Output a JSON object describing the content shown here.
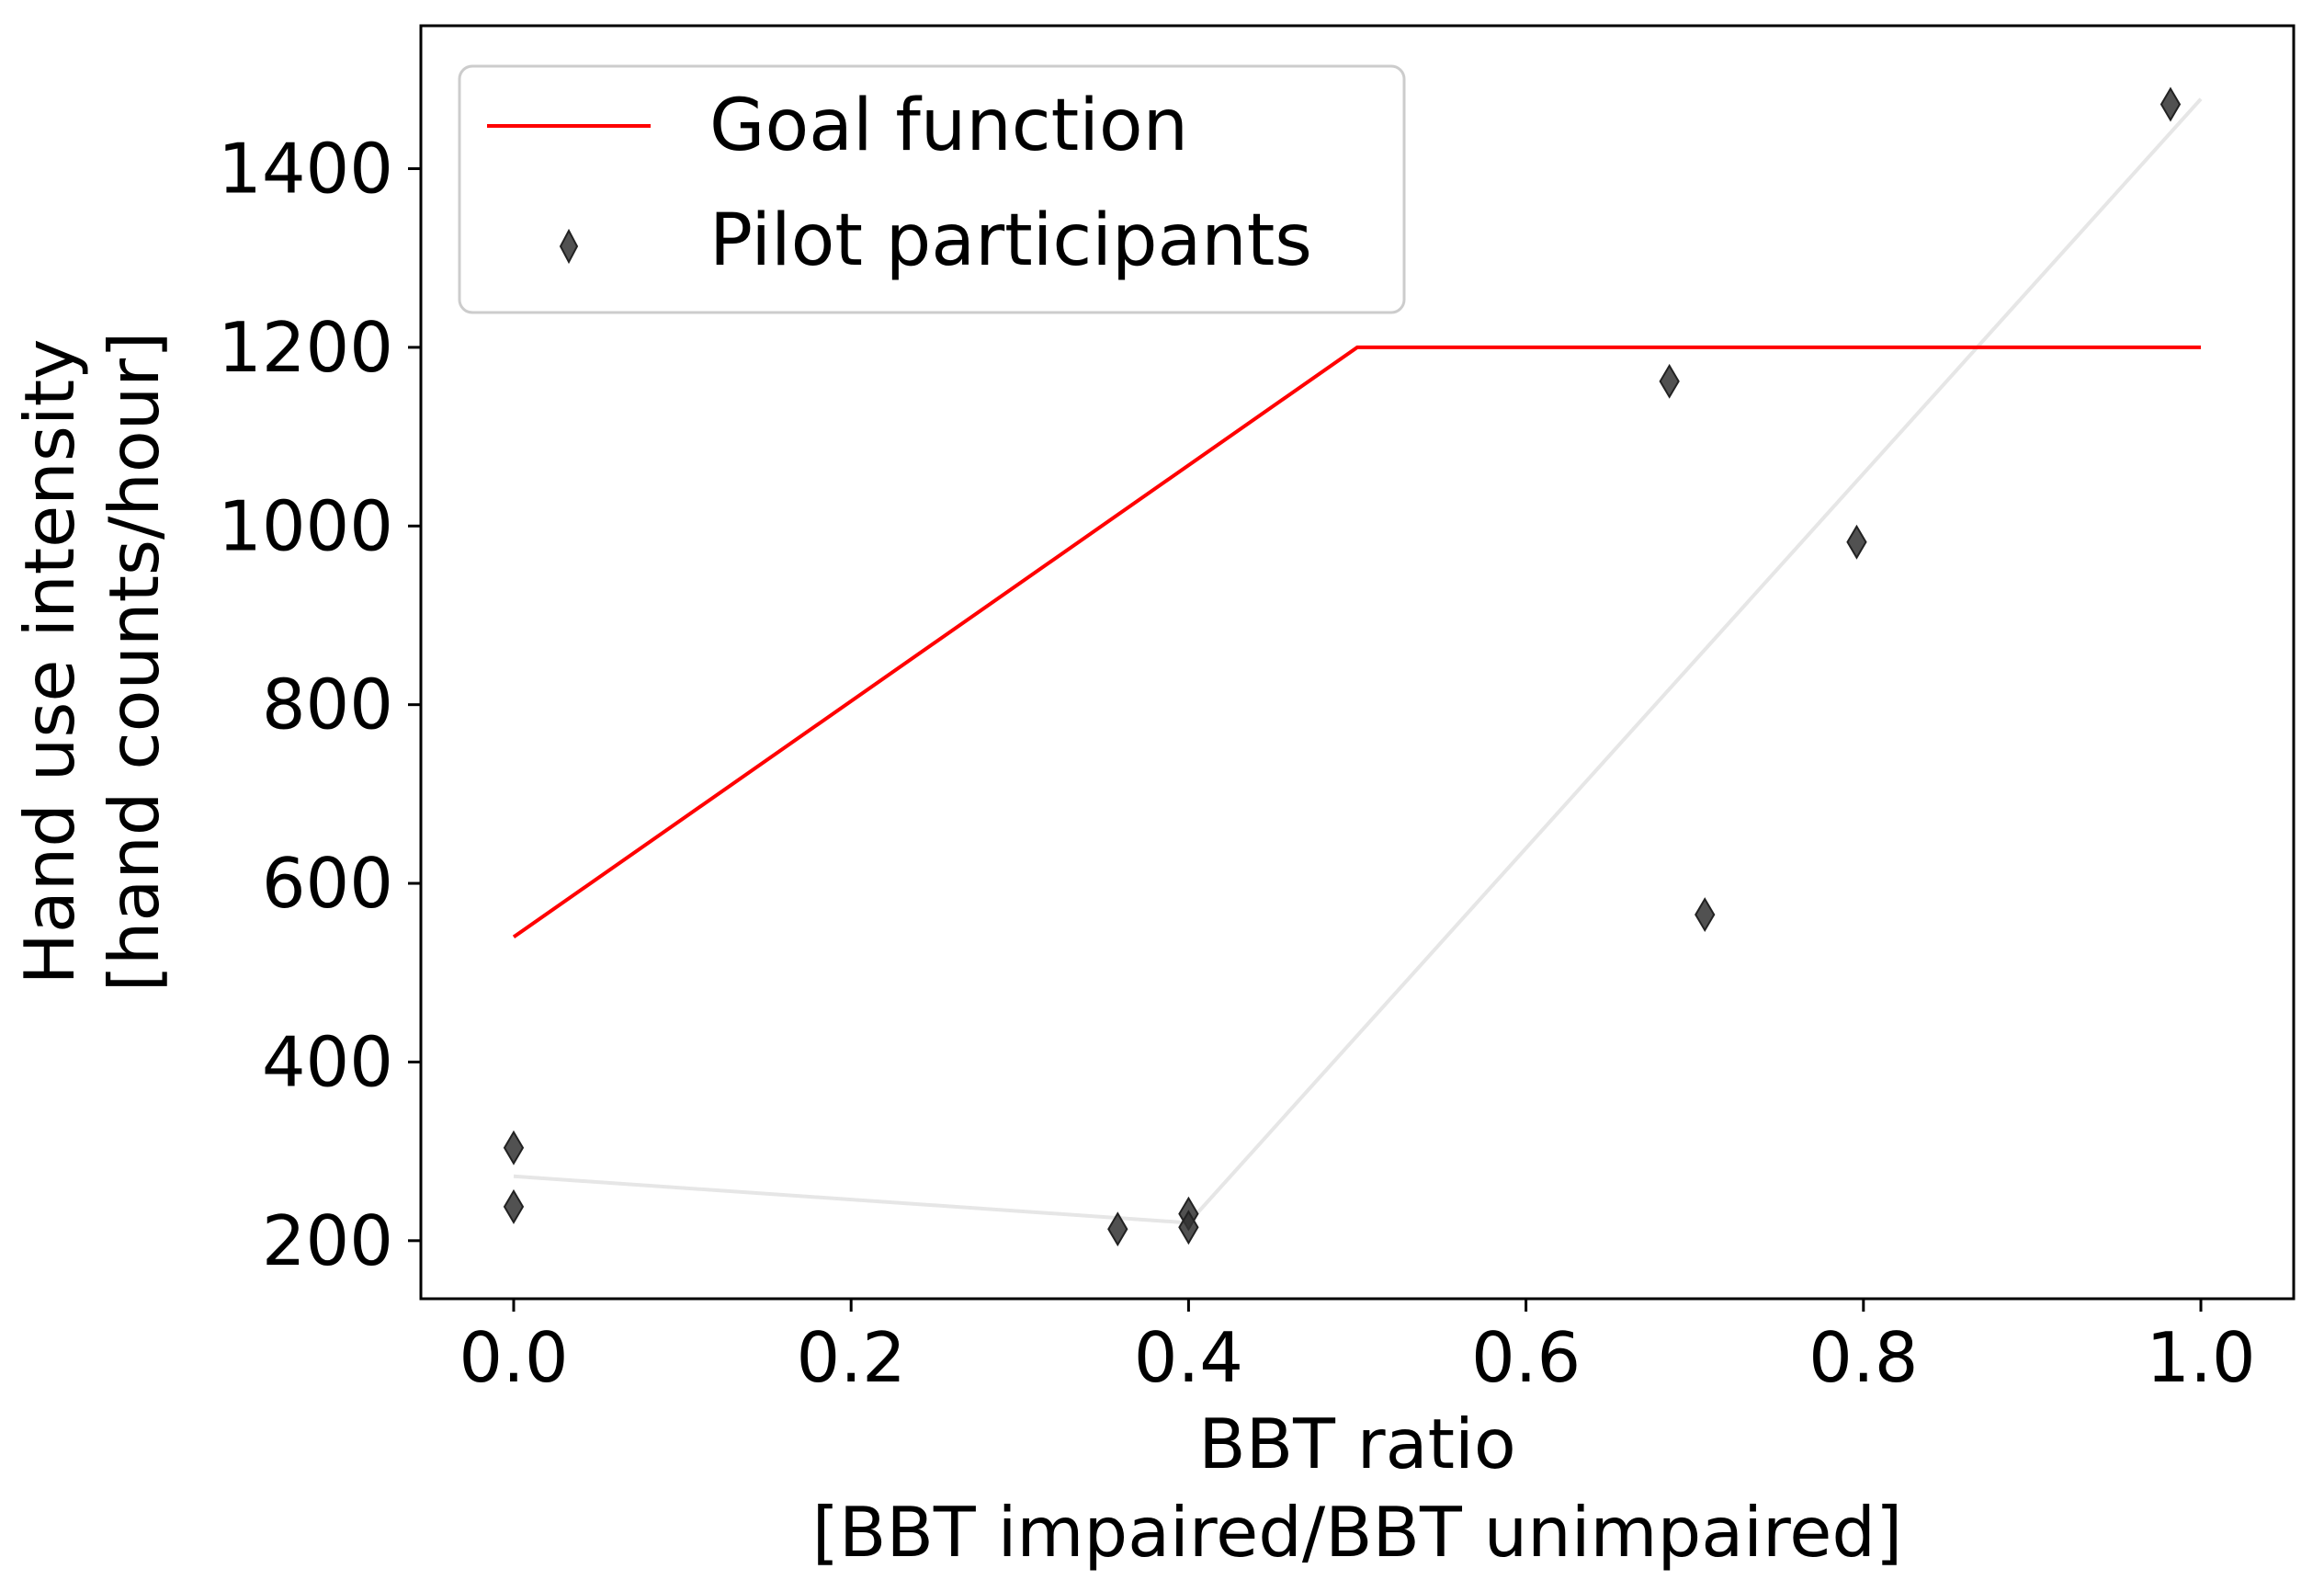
{
  "chart_data": {
    "type": "line",
    "title": "",
    "xlabel_line1": "BBT ratio",
    "xlabel_line2": "[BBT impaired/BBT unimpaired]",
    "ylabel_line1": "Hand use intensity",
    "ylabel_line2": "[hand counts/hour]",
    "xlim": [
      -0.055,
      1.055
    ],
    "ylim": [
      135,
      1560
    ],
    "xticks": [
      0.0,
      0.2,
      0.4,
      0.6,
      0.8,
      1.0
    ],
    "xtick_labels": [
      "0.0",
      "0.2",
      "0.4",
      "0.6",
      "0.8",
      "1.0"
    ],
    "yticks": [
      200,
      400,
      600,
      800,
      1000,
      1200,
      1400
    ],
    "ytick_labels": [
      "200",
      "400",
      "600",
      "800",
      "1000",
      "1200",
      "1400"
    ],
    "grid": false,
    "legend_position": "top-left",
    "series": [
      {
        "name": "Goal function",
        "kind": "line",
        "color": "#ff0000",
        "x": [
          0.0,
          0.5,
          1.0
        ],
        "y": [
          540,
          1200,
          1200
        ]
      },
      {
        "name": "Pilot participants",
        "kind": "scatter",
        "marker": "thin_diamond",
        "color": "#333333",
        "x": [
          0.0,
          0.0,
          0.358,
          0.4,
          0.4,
          0.685,
          0.706,
          0.796,
          0.982
        ],
        "y": [
          304,
          238,
          213,
          230,
          215,
          1162,
          565,
          982,
          1472
        ]
      },
      {
        "name": "trend",
        "kind": "line",
        "color": "#e6e6e6",
        "in_legend": false,
        "x": [
          0.0,
          0.4,
          1.0
        ],
        "y": [
          272,
          220,
          1478
        ]
      }
    ]
  }
}
